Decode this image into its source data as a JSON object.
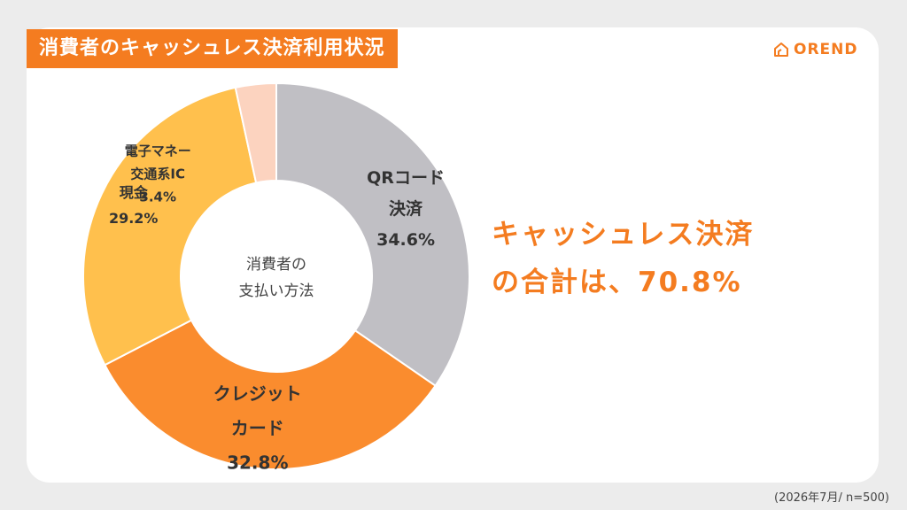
{
  "header": {
    "title": "消費者のキャッシュレス決済利用状況",
    "logo_text": "OREND",
    "logo_icon": "house-outline-icon"
  },
  "chart_data": {
    "type": "pie",
    "variant": "donut",
    "center_label_lines": [
      "消費者の",
      "支払い方法"
    ],
    "slices": [
      {
        "name_lines": [
          "QRコード",
          "決済"
        ],
        "value": 34.6,
        "value_label": "34.6%",
        "color": "#c0bfc4"
      },
      {
        "name_lines": [
          "クレジット",
          "カード"
        ],
        "value": 32.8,
        "value_label": "32.8%",
        "color": "#fa8c2e"
      },
      {
        "name_lines": [
          "現金"
        ],
        "value": 29.2,
        "value_label": "29.2%",
        "color": "#ffc04d"
      },
      {
        "name_lines": [
          "電子マネー",
          "交通系IC"
        ],
        "value": 3.4,
        "value_label": "3.4%",
        "color": "#fcd3bf"
      }
    ]
  },
  "highlight": {
    "line1": "キャッシュレス決済",
    "line2": "の合計は、70.8%"
  },
  "footnote": "(2026年7月/ n=500)",
  "colors": {
    "accent": "#f47c20",
    "background": "#ececec",
    "card": "#ffffff"
  }
}
